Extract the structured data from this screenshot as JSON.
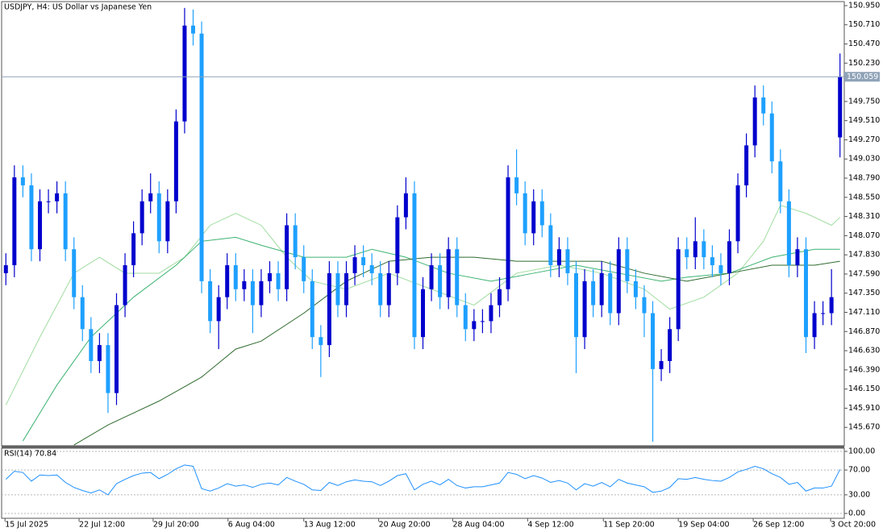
{
  "chart_data": [
    {
      "type": "candlestick",
      "title": "USDJPY, H4:  US Dollar vs Japanese Yen",
      "open": [
        147.6,
        147.7,
        148.8,
        148.7,
        147.9,
        148.5,
        148.5,
        148.6,
        147.9,
        147.3,
        146.9,
        146.5,
        146.7,
        146.1,
        147.2,
        147.7,
        148.1,
        148.5,
        148.6,
        148.0,
        148.5,
        149.5,
        150.7,
        150.6,
        147.5,
        147.0,
        147.3,
        147.7,
        147.4,
        147.5,
        147.2,
        147.5,
        147.6,
        147.4,
        148.2,
        147.8,
        147.5,
        146.8,
        146.7,
        147.6,
        147.2,
        147.6,
        147.8,
        147.7,
        147.6,
        147.2,
        147.6,
        148.3,
        148.6,
        146.8,
        147.4,
        147.7,
        147.3,
        147.9,
        147.2,
        146.9,
        147.0,
        147.0,
        147.2,
        147.4,
        148.8,
        148.6,
        148.1,
        148.5,
        148.2,
        147.7,
        147.9,
        147.6,
        146.8,
        147.5,
        147.2,
        147.6,
        147.1,
        147.9,
        147.5,
        147.3,
        147.1,
        146.4,
        146.5,
        146.9,
        147.9,
        147.8,
        148.0,
        147.8,
        147.7,
        147.6,
        148.0,
        148.7,
        149.2,
        149.8,
        149.6,
        149.0,
        148.5,
        147.7,
        147.9,
        146.8,
        147.1,
        147.1,
        149.3
      ],
      "high": [
        147.85,
        148.95,
        148.95,
        148.85,
        148.65,
        148.65,
        148.75,
        148.75,
        148.05,
        147.45,
        147.05,
        146.85,
        146.85,
        147.35,
        147.85,
        148.25,
        148.65,
        148.85,
        148.75,
        148.65,
        149.65,
        150.92,
        150.9,
        150.75,
        147.65,
        147.45,
        147.85,
        147.85,
        147.65,
        147.65,
        147.65,
        147.75,
        147.75,
        148.35,
        148.35,
        147.95,
        147.65,
        146.95,
        147.75,
        147.75,
        147.75,
        147.95,
        147.95,
        147.85,
        147.75,
        147.75,
        148.45,
        148.8,
        148.75,
        147.55,
        147.85,
        147.85,
        148.05,
        148.05,
        147.35,
        147.15,
        147.15,
        147.35,
        147.55,
        148.95,
        149.15,
        148.75,
        148.65,
        148.65,
        148.35,
        148.05,
        148.05,
        147.75,
        147.65,
        147.65,
        147.75,
        147.75,
        148.05,
        148.05,
        147.65,
        147.45,
        147.25,
        146.65,
        147.05,
        148.05,
        148.05,
        148.3,
        148.15,
        147.95,
        147.85,
        148.15,
        148.85,
        149.35,
        149.95,
        149.95,
        149.75,
        149.15,
        148.65,
        148.05,
        148.05,
        147.25,
        147.25,
        147.65,
        150.35
      ],
      "low": [
        147.45,
        147.55,
        148.55,
        147.75,
        147.75,
        148.35,
        148.35,
        147.75,
        147.15,
        146.75,
        146.35,
        146.35,
        145.85,
        145.95,
        147.05,
        147.55,
        147.95,
        148.35,
        147.85,
        147.85,
        148.35,
        149.35,
        150.45,
        147.35,
        146.85,
        146.65,
        147.15,
        147.25,
        147.25,
        146.85,
        147.05,
        147.35,
        147.25,
        147.25,
        147.65,
        147.35,
        146.65,
        146.3,
        146.55,
        147.05,
        147.05,
        147.45,
        147.55,
        147.45,
        147.05,
        147.05,
        147.45,
        148.15,
        146.65,
        146.65,
        147.25,
        147.15,
        147.15,
        147.05,
        146.75,
        146.75,
        146.85,
        146.85,
        147.05,
        147.25,
        148.45,
        147.95,
        147.95,
        148.05,
        147.55,
        147.55,
        147.45,
        146.35,
        146.65,
        147.05,
        147.05,
        146.95,
        146.95,
        147.35,
        147.15,
        146.8,
        145.49,
        146.25,
        146.35,
        146.75,
        147.65,
        147.65,
        147.65,
        147.55,
        147.45,
        147.45,
        147.85,
        148.55,
        149.05,
        149.45,
        148.85,
        148.35,
        147.55,
        147.55,
        146.6,
        146.65,
        146.95,
        146.95,
        149.05
      ],
      "close": [
        147.7,
        148.8,
        148.7,
        147.9,
        148.5,
        148.5,
        148.6,
        147.9,
        147.3,
        146.9,
        146.5,
        146.7,
        146.1,
        147.2,
        147.7,
        148.1,
        148.5,
        148.6,
        148.0,
        148.5,
        149.5,
        150.7,
        150.6,
        147.5,
        147.0,
        147.3,
        147.7,
        147.4,
        147.5,
        147.2,
        147.5,
        147.6,
        147.4,
        148.2,
        147.8,
        147.5,
        146.8,
        146.7,
        147.6,
        147.2,
        147.6,
        147.8,
        147.7,
        147.6,
        147.2,
        147.6,
        148.3,
        148.6,
        146.8,
        147.4,
        147.7,
        147.3,
        147.9,
        147.2,
        146.9,
        147.0,
        147.0,
        147.2,
        147.4,
        148.8,
        148.6,
        148.1,
        148.5,
        148.2,
        147.7,
        147.9,
        147.6,
        146.8,
        147.5,
        147.2,
        147.6,
        147.1,
        147.9,
        147.5,
        147.3,
        147.1,
        146.4,
        146.5,
        146.9,
        147.9,
        147.8,
        148.0,
        147.8,
        147.7,
        147.6,
        148.0,
        148.7,
        149.2,
        149.8,
        149.6,
        149.0,
        148.5,
        147.7,
        147.9,
        146.8,
        147.1,
        147.1,
        147.3,
        150.06
      ],
      "up_color": "#0000cd",
      "down_color": "#1ea0ff",
      "series": [
        {
          "color": "#9fdc9f",
          "x": [
            0,
            4,
            8,
            11,
            14,
            18,
            21,
            24,
            27,
            30,
            33,
            36,
            40,
            45,
            50,
            55,
            60,
            65,
            70,
            75,
            78,
            82,
            86,
            89,
            91,
            94,
            97,
            98
          ],
          "values": [
            145.95,
            146.8,
            147.6,
            147.8,
            147.6,
            147.6,
            147.8,
            148.2,
            148.35,
            148.2,
            147.8,
            147.5,
            147.4,
            147.6,
            147.4,
            147.2,
            147.6,
            147.7,
            147.6,
            147.4,
            147.15,
            147.3,
            147.6,
            148.0,
            148.45,
            148.35,
            148.2,
            148.3
          ]
        },
        {
          "color": "#3cb371",
          "x": [
            2,
            6,
            10,
            15,
            20,
            23,
            27,
            30,
            35,
            40,
            43,
            47,
            52,
            57,
            62,
            67,
            72,
            77,
            80,
            85,
            90,
            95,
            98
          ],
          "values": [
            145.5,
            146.2,
            146.8,
            147.3,
            147.7,
            148.0,
            148.05,
            147.95,
            147.8,
            147.8,
            147.9,
            147.8,
            147.6,
            147.5,
            147.6,
            147.7,
            147.6,
            147.5,
            147.55,
            147.6,
            147.8,
            147.9,
            147.9
          ]
        },
        {
          "color": "#2e6b2e",
          "x": [
            8,
            12,
            18,
            23,
            27,
            30,
            35,
            40,
            45,
            50,
            55,
            60,
            65,
            70,
            75,
            80,
            85,
            90,
            95,
            98
          ],
          "values": [
            145.45,
            145.7,
            146.0,
            146.3,
            146.65,
            146.75,
            147.1,
            147.5,
            147.75,
            147.8,
            147.8,
            147.75,
            147.75,
            147.75,
            147.6,
            147.5,
            147.6,
            147.7,
            147.7,
            147.75
          ]
        }
      ],
      "current_price": {
        "value": 150.059,
        "label": "150.059"
      },
      "price_color": "#8fa3b8",
      "ylim": [
        145.44,
        151.0
      ],
      "yticks": [
        {
          "value": 150.95,
          "label": "150.950"
        },
        {
          "value": 150.71,
          "label": "150.710"
        },
        {
          "value": 150.47,
          "label": "150.470"
        },
        {
          "value": 150.23,
          "label": "150.230"
        },
        {
          "value": 149.75,
          "label": "149.750"
        },
        {
          "value": 149.51,
          "label": "149.510"
        },
        {
          "value": 149.27,
          "label": "149.270"
        },
        {
          "value": 149.03,
          "label": "149.030"
        },
        {
          "value": 148.79,
          "label": "148.790"
        },
        {
          "value": 148.55,
          "label": "148.550"
        },
        {
          "value": 148.31,
          "label": "148.310"
        },
        {
          "value": 148.07,
          "label": "148.070"
        },
        {
          "value": 147.83,
          "label": "147.830"
        },
        {
          "value": 147.59,
          "label": "147.590"
        },
        {
          "value": 147.35,
          "label": "147.350"
        },
        {
          "value": 147.11,
          "label": "147.110"
        },
        {
          "value": 146.87,
          "label": "146.870"
        },
        {
          "value": 146.63,
          "label": "146.630"
        },
        {
          "value": 146.39,
          "label": "146.390"
        },
        {
          "value": 146.15,
          "label": "146.150"
        },
        {
          "value": 145.91,
          "label": "145.910"
        },
        {
          "value": 145.67,
          "label": "145.670"
        }
      ],
      "xlim": [
        -0.5,
        98.5
      ]
    },
    {
      "type": "line",
      "title": "RSI(14) 70.84",
      "color": "#1e90ff",
      "values": [
        55,
        68,
        66,
        52,
        62,
        61,
        62,
        50,
        42,
        37,
        33,
        38,
        30,
        48,
        55,
        61,
        65,
        66,
        56,
        63,
        72,
        78,
        76,
        40,
        36,
        41,
        48,
        44,
        46,
        42,
        47,
        49,
        46,
        58,
        52,
        47,
        38,
        37,
        50,
        45,
        51,
        54,
        52,
        51,
        45,
        52,
        61,
        64,
        38,
        47,
        52,
        46,
        55,
        45,
        41,
        43,
        43,
        46,
        49,
        66,
        63,
        56,
        61,
        57,
        50,
        53,
        49,
        38,
        48,
        44,
        50,
        43,
        55,
        49,
        46,
        43,
        34,
        36,
        42,
        56,
        55,
        58,
        55,
        53,
        52,
        58,
        67,
        71,
        76,
        72,
        64,
        58,
        47,
        50,
        36,
        41,
        41,
        44,
        70.84
      ],
      "ylim": [
        -7.8,
        105.2
      ],
      "yticks": [
        {
          "value": 100,
          "label": "100.00"
        },
        {
          "value": 70,
          "label": "70.00"
        },
        {
          "value": 30,
          "label": "30.00"
        },
        {
          "value": 0,
          "label": "0.00"
        }
      ],
      "grid": true,
      "xlim": [
        -0.5,
        98.5
      ],
      "xticks": [
        {
          "value": -0.1,
          "label": "15 Jul 2025"
        },
        {
          "value": 8.6,
          "label": "22 Jul 12:00"
        },
        {
          "value": 17.3,
          "label": "29 Jul 20:00"
        },
        {
          "value": 26.1,
          "label": "6 Aug 04:00"
        },
        {
          "value": 35.0,
          "label": "13 Aug 12:00"
        },
        {
          "value": 43.8,
          "label": "20 Aug 20:00"
        },
        {
          "value": 52.5,
          "label": "28 Aug 04:00"
        },
        {
          "value": 61.3,
          "label": "4 Sep 12:00"
        },
        {
          "value": 70.2,
          "label": "11 Sep 20:00"
        },
        {
          "value": 79.0,
          "label": "19 Sep 04:00"
        },
        {
          "value": 87.8,
          "label": "26 Sep 12:00"
        },
        {
          "value": 96.9,
          "label": "3 Oct 20:00"
        }
      ]
    }
  ]
}
